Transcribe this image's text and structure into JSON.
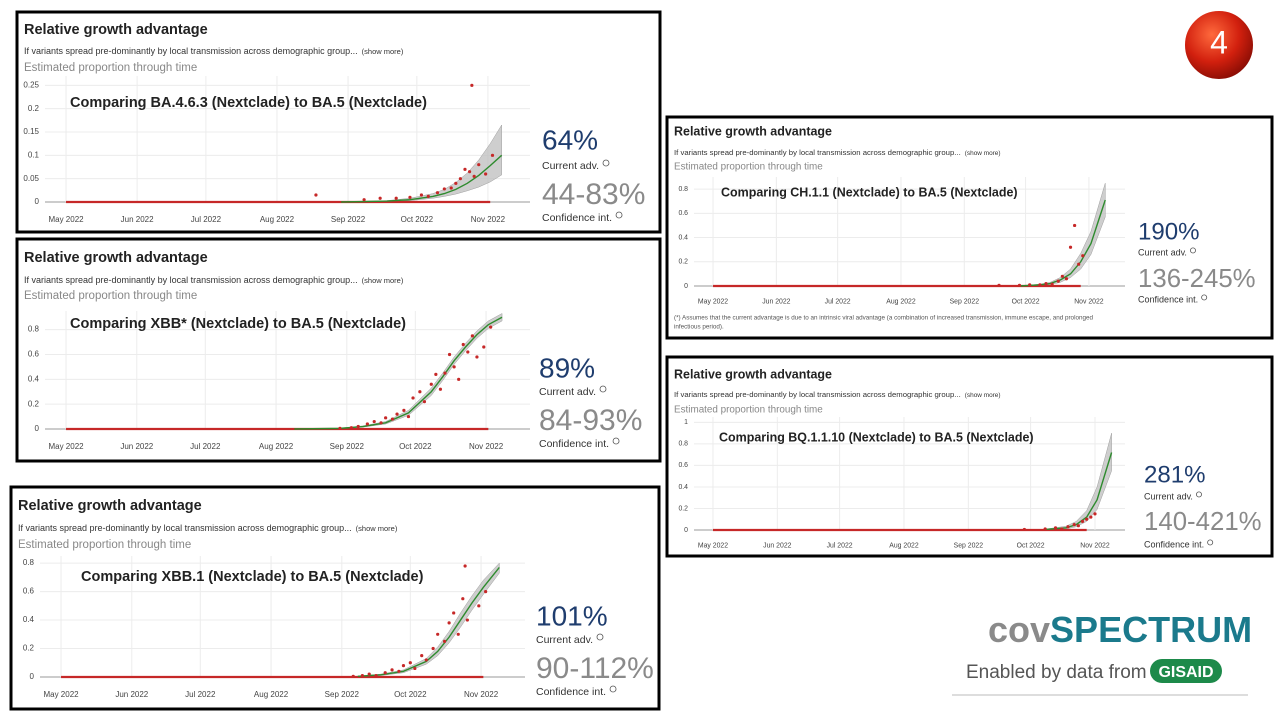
{
  "slide_number": "4",
  "logo": {
    "prefix": "cov",
    "name": "SPECTRUM",
    "tagline": "Enabled by data from",
    "source": "GISAID"
  },
  "footnote": [
    "(*) Assumes that the current advantage is due to an intrinsic viral advantage (a combination of increased transmission, immune escape, and prolonged",
    "infectious period)."
  ],
  "chart_data": [
    {
      "type": "line",
      "header": "Relative growth advantage",
      "subtitle": "If variants spread pre-dominantly by local transmission across demographic group...",
      "show_more": "(show more)",
      "y_label": "Estimated proportion through time",
      "title": "Comparing BA.4.6.3 (Nextclade) to BA.5 (Nextclade)",
      "advantage": "64%",
      "advantage_label": "Current adv.",
      "confidence_interval": "44-83%",
      "confidence_label": "Confidence int.",
      "xlim": [
        -10,
        200
      ],
      "xticks": [
        {
          "value": 0,
          "label": "May 2022"
        },
        {
          "value": 31,
          "label": "Jun 2022"
        },
        {
          "value": 61,
          "label": "Jul 2022"
        },
        {
          "value": 92,
          "label": "Aug 2022"
        },
        {
          "value": 123,
          "label": "Sep 2022"
        },
        {
          "value": 153,
          "label": "Oct 2022"
        },
        {
          "value": 184,
          "label": "Nov 2022"
        }
      ],
      "ylim": [
        0,
        0.27
      ],
      "yticks": [
        0,
        0.05,
        0.1,
        0.15,
        0.2,
        0.25
      ],
      "grid": true,
      "series": [
        {
          "mode": "band",
          "color": "#bdbdbd",
          "x": [
            120,
            140,
            150,
            160,
            165,
            170,
            175,
            180,
            185,
            190
          ],
          "lower": [
            0,
            0.001,
            0.003,
            0.008,
            0.012,
            0.017,
            0.024,
            0.032,
            0.043,
            0.058
          ],
          "upper": [
            0,
            0.003,
            0.008,
            0.018,
            0.027,
            0.042,
            0.062,
            0.09,
            0.125,
            0.165
          ]
        },
        {
          "mode": "line",
          "color": "#c62828",
          "x": [
            0,
            185
          ],
          "values": [
            0,
            0
          ]
        },
        {
          "mode": "line",
          "color": "#2e8b2e",
          "x": [
            120,
            140,
            150,
            160,
            165,
            170,
            175,
            180,
            185,
            190
          ],
          "values": [
            0,
            0.002,
            0.005,
            0.012,
            0.018,
            0.027,
            0.04,
            0.057,
            0.078,
            0.1
          ]
        },
        {
          "mode": "scatter",
          "color": "#c62828",
          "x": [
            109,
            130,
            137,
            144,
            150,
            155,
            158,
            162,
            165,
            168,
            170,
            172,
            174,
            176,
            177,
            178,
            180,
            183,
            186
          ],
          "values": [
            0.015,
            0.005,
            0.008,
            0.008,
            0.01,
            0.015,
            0.012,
            0.02,
            0.028,
            0.03,
            0.04,
            0.05,
            0.07,
            0.065,
            0.25,
            0.055,
            0.08,
            0.06,
            0.1
          ]
        }
      ]
    },
    {
      "type": "line",
      "header": "Relative growth advantage",
      "subtitle": "If variants spread pre-dominantly by local transmission across demographic group...",
      "show_more": "(show more)",
      "y_label": "Estimated proportion through time",
      "title": "Comparing XBB* (Nextclade) to BA.5 (Nextclade)",
      "advantage": "89%",
      "advantage_label": "Current adv.",
      "confidence_interval": "84-93%",
      "confidence_label": "Confidence int.",
      "xlim": [
        -10,
        200
      ],
      "xticks": [
        {
          "value": 0,
          "label": "May 2022"
        },
        {
          "value": 31,
          "label": "Jun 2022"
        },
        {
          "value": 61,
          "label": "Jul 2022"
        },
        {
          "value": 92,
          "label": "Aug 2022"
        },
        {
          "value": 123,
          "label": "Sep 2022"
        },
        {
          "value": 153,
          "label": "Oct 2022"
        },
        {
          "value": 184,
          "label": "Nov 2022"
        }
      ],
      "ylim": [
        0,
        0.95
      ],
      "yticks": [
        0,
        0.2,
        0.4,
        0.6,
        0.8
      ],
      "grid": true,
      "series": [
        {
          "mode": "band",
          "color": "#bdbdbd",
          "x": [
            100,
            120,
            130,
            140,
            150,
            160,
            165,
            170,
            175,
            180,
            185,
            191
          ],
          "lower": [
            0,
            0.003,
            0.015,
            0.04,
            0.11,
            0.27,
            0.39,
            0.52,
            0.63,
            0.73,
            0.81,
            0.87
          ],
          "upper": [
            0,
            0.007,
            0.025,
            0.06,
            0.15,
            0.33,
            0.45,
            0.58,
            0.69,
            0.79,
            0.87,
            0.93
          ]
        },
        {
          "mode": "line",
          "color": "#c62828",
          "x": [
            0,
            185
          ],
          "values": [
            0,
            0
          ]
        },
        {
          "mode": "line",
          "color": "#2e8b2e",
          "x": [
            100,
            120,
            130,
            140,
            150,
            160,
            165,
            170,
            175,
            180,
            185,
            191
          ],
          "values": [
            0,
            0.005,
            0.02,
            0.05,
            0.13,
            0.3,
            0.42,
            0.55,
            0.66,
            0.76,
            0.84,
            0.9
          ]
        },
        {
          "mode": "scatter",
          "color": "#c62828",
          "x": [
            120,
            125,
            128,
            132,
            135,
            138,
            140,
            143,
            145,
            148,
            150,
            152,
            155,
            157,
            160,
            162,
            164,
            166,
            168,
            170,
            172,
            174,
            176,
            178,
            180,
            183,
            186
          ],
          "values": [
            0.005,
            0.01,
            0.02,
            0.04,
            0.06,
            0.05,
            0.09,
            0.08,
            0.12,
            0.15,
            0.1,
            0.25,
            0.3,
            0.22,
            0.36,
            0.44,
            0.32,
            0.45,
            0.6,
            0.5,
            0.4,
            0.68,
            0.62,
            0.75,
            0.58,
            0.66,
            0.82
          ]
        }
      ]
    },
    {
      "type": "line",
      "header": "Relative growth advantage",
      "subtitle": "If variants spread pre-dominantly by local transmission across demographic group...",
      "show_more": "(show more)",
      "y_label": "Estimated proportion through time",
      "title": "Comparing XBB.1 (Nextclade) to BA.5 (Nextclade)",
      "advantage": "101%",
      "advantage_label": "Current adv.",
      "confidence_interval": "90-112%",
      "confidence_label": "Confidence int.",
      "xlim": [
        -10,
        200
      ],
      "xticks": [
        {
          "value": 0,
          "label": "May 2022"
        },
        {
          "value": 31,
          "label": "Jun 2022"
        },
        {
          "value": 61,
          "label": "Jul 2022"
        },
        {
          "value": 92,
          "label": "Aug 2022"
        },
        {
          "value": 123,
          "label": "Sep 2022"
        },
        {
          "value": 153,
          "label": "Oct 2022"
        },
        {
          "value": 184,
          "label": "Nov 2022"
        }
      ],
      "ylim": [
        0,
        0.85
      ],
      "yticks": [
        0,
        0.2,
        0.4,
        0.6,
        0.8
      ],
      "grid": true,
      "series": [
        {
          "mode": "band",
          "color": "#bdbdbd",
          "x": [
            130,
            140,
            150,
            160,
            165,
            170,
            175,
            180,
            185,
            192
          ],
          "lower": [
            0.003,
            0.01,
            0.03,
            0.09,
            0.15,
            0.24,
            0.35,
            0.47,
            0.58,
            0.73
          ],
          "upper": [
            0.007,
            0.02,
            0.05,
            0.13,
            0.21,
            0.32,
            0.45,
            0.57,
            0.68,
            0.8
          ]
        },
        {
          "mode": "line",
          "color": "#c62828",
          "x": [
            0,
            185
          ],
          "values": [
            0,
            0
          ]
        },
        {
          "mode": "line",
          "color": "#2e8b2e",
          "x": [
            130,
            140,
            150,
            160,
            165,
            170,
            175,
            180,
            185,
            192
          ],
          "values": [
            0.005,
            0.015,
            0.04,
            0.11,
            0.18,
            0.28,
            0.4,
            0.52,
            0.63,
            0.77
          ]
        },
        {
          "mode": "scatter",
          "color": "#c62828",
          "x": [
            128,
            132,
            135,
            138,
            142,
            145,
            148,
            150,
            153,
            155,
            158,
            160,
            163,
            165,
            168,
            170,
            172,
            174,
            176,
            177,
            178,
            183,
            186
          ],
          "values": [
            0.005,
            0.01,
            0.02,
            0.01,
            0.03,
            0.05,
            0.04,
            0.08,
            0.1,
            0.06,
            0.15,
            0.12,
            0.2,
            0.3,
            0.25,
            0.38,
            0.45,
            0.3,
            0.55,
            0.78,
            0.4,
            0.5,
            0.6
          ]
        }
      ]
    },
    {
      "type": "line",
      "header": "Relative growth advantage",
      "subtitle": "If variants spread pre-dominantly by local transmission across demographic group...",
      "show_more": "(show more)",
      "y_label": "Estimated proportion through time",
      "title": "Comparing CH.1.1 (Nextclade) to BA.5 (Nextclade)",
      "advantage": "190%",
      "advantage_label": "Current adv.",
      "confidence_interval": "136-245%",
      "confidence_label": "Confidence int.",
      "xlim": [
        -10,
        200
      ],
      "xticks": [
        {
          "value": 0,
          "label": "May 2022"
        },
        {
          "value": 31,
          "label": "Jun 2022"
        },
        {
          "value": 61,
          "label": "Jul 2022"
        },
        {
          "value": 92,
          "label": "Aug 2022"
        },
        {
          "value": 123,
          "label": "Sep 2022"
        },
        {
          "value": 153,
          "label": "Oct 2022"
        },
        {
          "value": 184,
          "label": "Nov 2022"
        }
      ],
      "ylim": [
        0,
        0.9
      ],
      "yticks": [
        0,
        0.2,
        0.4,
        0.6,
        0.8
      ],
      "grid": true,
      "series": [
        {
          "mode": "band",
          "color": "#bdbdbd",
          "x": [
            150,
            160,
            165,
            170,
            175,
            180,
            185,
            192
          ],
          "lower": [
            0,
            0.005,
            0.012,
            0.03,
            0.07,
            0.14,
            0.26,
            0.57
          ],
          "upper": [
            0,
            0.015,
            0.03,
            0.07,
            0.14,
            0.27,
            0.45,
            0.85
          ]
        },
        {
          "mode": "line",
          "color": "#c62828",
          "x": [
            0,
            180
          ],
          "values": [
            0,
            0
          ]
        },
        {
          "mode": "line",
          "color": "#2e8b2e",
          "x": [
            150,
            160,
            165,
            170,
            175,
            180,
            185,
            192
          ],
          "values": [
            0,
            0.01,
            0.02,
            0.05,
            0.1,
            0.2,
            0.35,
            0.71
          ]
        },
        {
          "mode": "scatter",
          "color": "#c62828",
          "x": [
            140,
            150,
            155,
            160,
            163,
            166,
            169,
            171,
            173,
            175,
            177,
            179,
            181
          ],
          "values": [
            0.005,
            0.005,
            0.01,
            0.01,
            0.02,
            0.015,
            0.04,
            0.08,
            0.06,
            0.32,
            0.5,
            0.18,
            0.25
          ]
        }
      ]
    },
    {
      "type": "line",
      "header": "Relative growth advantage",
      "subtitle": "If variants spread pre-dominantly by local transmission across demographic group...",
      "show_more": "(show more)",
      "y_label": "Estimated proportion through time",
      "title": "Comparing BQ.1.1.10 (Nextclade) to BA.5 (Nextclade)",
      "advantage": "281%",
      "advantage_label": "Current adv.",
      "confidence_interval": "140-421%",
      "confidence_label": "Confidence int.",
      "xlim": [
        -10,
        200
      ],
      "xticks": [
        {
          "value": 0,
          "label": "May 2022"
        },
        {
          "value": 31,
          "label": "Jun 2022"
        },
        {
          "value": 61,
          "label": "Jul 2022"
        },
        {
          "value": 92,
          "label": "Aug 2022"
        },
        {
          "value": 123,
          "label": "Sep 2022"
        },
        {
          "value": 153,
          "label": "Oct 2022"
        },
        {
          "value": 184,
          "label": "Nov 2022"
        }
      ],
      "ylim": [
        0,
        1.05
      ],
      "yticks": [
        0,
        0.2,
        0.4,
        0.6,
        0.8,
        1
      ],
      "grid": true,
      "series": [
        {
          "mode": "band",
          "color": "#bdbdbd",
          "x": [
            160,
            170,
            175,
            180,
            185,
            192
          ],
          "lower": [
            0.002,
            0.01,
            0.03,
            0.08,
            0.19,
            0.55
          ],
          "upper": [
            0.008,
            0.035,
            0.08,
            0.18,
            0.4,
            0.9
          ]
        },
        {
          "mode": "line",
          "color": "#c62828",
          "x": [
            0,
            180
          ],
          "values": [
            0,
            0
          ]
        },
        {
          "mode": "line",
          "color": "#2e8b2e",
          "x": [
            160,
            170,
            175,
            180,
            185,
            192
          ],
          "values": [
            0.005,
            0.02,
            0.05,
            0.12,
            0.28,
            0.72
          ]
        },
        {
          "mode": "scatter",
          "color": "#c62828",
          "x": [
            150,
            160,
            165,
            168,
            171,
            174,
            176,
            178,
            180,
            182,
            184
          ],
          "values": [
            0.005,
            0.01,
            0.02,
            0.01,
            0.03,
            0.05,
            0.04,
            0.08,
            0.1,
            0.12,
            0.15
          ]
        }
      ]
    }
  ]
}
